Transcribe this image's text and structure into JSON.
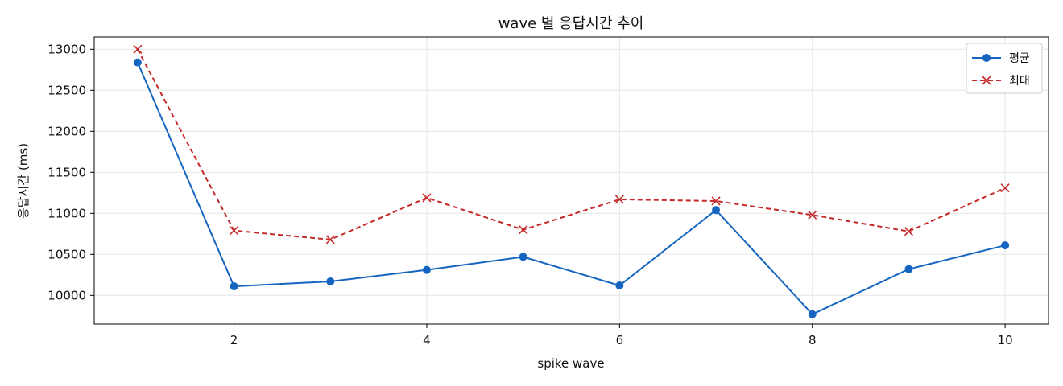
{
  "chart_data": {
    "type": "line",
    "title": "wave 별 응답시간 추이",
    "xlabel": "spike wave",
    "ylabel": "응답시간 (ms)",
    "x": [
      1,
      2,
      3,
      4,
      5,
      6,
      7,
      8,
      9,
      10
    ],
    "xlim": [
      0.55,
      10.45
    ],
    "ylim": [
      9650,
      13150
    ],
    "xticks": [
      2,
      4,
      6,
      8,
      10
    ],
    "yticks": [
      10000,
      10500,
      11000,
      11500,
      12000,
      12500,
      13000
    ],
    "grid": true,
    "legend_position": "top-right",
    "series": [
      {
        "name": "평균",
        "values": [
          12840,
          10110,
          10170,
          10310,
          10470,
          10120,
          11040,
          9770,
          10320,
          10610
        ],
        "color": "#1565c0",
        "style": "solid",
        "marker": "circle"
      },
      {
        "name": "최대",
        "values": [
          13000,
          10790,
          10680,
          11190,
          10800,
          11170,
          11150,
          10980,
          10780,
          11310
        ],
        "color": "#c62828",
        "style": "dashed",
        "marker": "x"
      }
    ]
  }
}
